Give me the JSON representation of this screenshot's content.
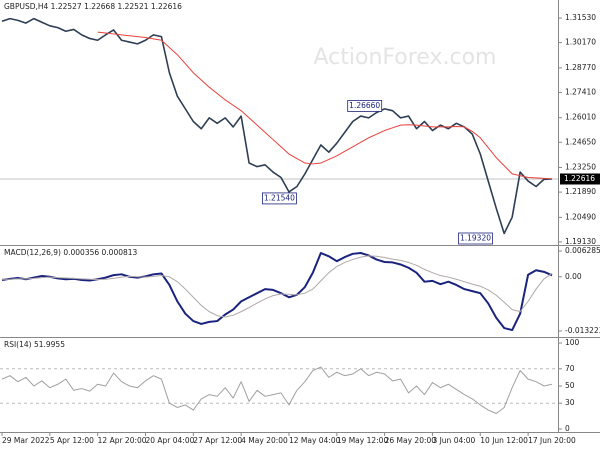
{
  "watermark": "ActionForex.com",
  "chart_data": [
    {
      "type": "line",
      "title": "GBPUSD,H4  1.22527 1.22668 1.22521 1.22616",
      "xlim": [
        -0.25,
        69.75
      ],
      "ylim": [
        1.1896,
        1.3253
      ],
      "yticks": [
        {
          "value": 1.3153,
          "label": "1.31530"
        },
        {
          "value": 1.3017,
          "label": "1.30170"
        },
        {
          "value": 1.2877,
          "label": "1.28770"
        },
        {
          "value": 1.2741,
          "label": "1.27410"
        },
        {
          "value": 1.2601,
          "label": "1.26010"
        },
        {
          "value": 1.2465,
          "label": "1.24650"
        },
        {
          "value": 1.2325,
          "label": "1.23250"
        },
        {
          "value": 1.2189,
          "label": "1.21890"
        },
        {
          "value": 1.2049,
          "label": "1.20490"
        },
        {
          "value": 1.1913,
          "label": "1.19130"
        }
      ],
      "current": 1.22616,
      "series": [
        {
          "color": "#2e3f55",
          "values": [
            1.3135,
            1.315,
            1.314,
            1.3125,
            1.315,
            1.313,
            1.311,
            1.31,
            1.308,
            1.309,
            1.306,
            1.304,
            1.303,
            1.306,
            1.3087,
            1.303,
            1.302,
            1.301,
            1.303,
            1.306,
            1.305,
            1.285,
            1.272,
            1.265,
            1.258,
            1.254,
            1.26,
            1.257,
            1.26,
            1.255,
            1.261,
            1.235,
            1.233,
            1.234,
            1.23,
            1.227,
            1.219,
            1.222,
            1.229,
            1.237,
            1.245,
            1.241,
            1.246,
            1.252,
            1.258,
            1.261,
            1.26,
            1.263,
            1.265,
            1.264,
            1.26,
            1.261,
            1.254,
            1.258,
            1.253,
            1.256,
            1.254,
            1.257,
            1.255,
            1.251,
            1.24,
            1.225,
            1.21,
            1.196,
            1.205,
            1.23,
            1.225,
            1.222,
            1.226,
            1.22616
          ]
        },
        {
          "color": "#e8413c",
          "values": [
            null,
            null,
            null,
            null,
            null,
            null,
            null,
            null,
            null,
            null,
            null,
            null,
            1.3075,
            1.307,
            1.3065,
            1.306,
            1.3055,
            1.305,
            1.3045,
            1.3038,
            1.303,
            1.299,
            1.295,
            1.29,
            1.285,
            1.281,
            1.277,
            1.2735,
            1.27,
            1.267,
            1.264,
            1.26,
            1.256,
            1.252,
            1.248,
            1.244,
            1.24,
            1.2375,
            1.235,
            1.2345,
            1.235,
            1.237,
            1.239,
            1.2415,
            1.244,
            1.2465,
            1.249,
            1.251,
            1.253,
            1.2545,
            1.256,
            1.2562,
            1.256,
            1.2555,
            1.255,
            1.255,
            1.255,
            1.2552,
            1.255,
            1.2525,
            1.249,
            1.2435,
            1.238,
            1.2335,
            1.229,
            1.228,
            1.227,
            1.2268,
            1.2265,
            1.2262
          ]
        }
      ],
      "annotations": [
        {
          "label": "1.26660",
          "x": 45.5,
          "y": 1.2666
        },
        {
          "label": "1.21540",
          "x": 34.8,
          "y": 1.2154
        },
        {
          "label": "1.19320",
          "x": 59.4,
          "y": 1.1932
        }
      ]
    },
    {
      "type": "line",
      "title": "MACD(12,26,9) 0.000356 0.000813",
      "xlim": [
        -0.25,
        69.75
      ],
      "ylim": [
        -0.014686,
        0.007504
      ],
      "yticks": [
        0.006285,
        {
          "value": 0,
          "label": "0.00"
        },
        -0.013223
      ],
      "series": [
        {
          "color": "#1a237e",
          "values": [
            -0.0008,
            -0.0005,
            -0.0003,
            -0.0006,
            -0.0002,
            0.0002,
            0.0,
            -0.0004,
            -0.0006,
            -0.0005,
            -0.0008,
            -0.0009,
            -0.0006,
            -0.0002,
            0.0004,
            0.0006,
            0.0,
            -0.0002,
            0.0001,
            0.0006,
            0.0008,
            -0.002,
            -0.006,
            -0.009,
            -0.0108,
            -0.0115,
            -0.011,
            -0.0108,
            -0.0092,
            -0.008,
            -0.006,
            -0.005,
            -0.004,
            -0.003,
            -0.0032,
            -0.004,
            -0.005,
            -0.0044,
            -0.0025,
            0.001,
            0.0058,
            0.005,
            0.0038,
            0.0048,
            0.0056,
            0.0058,
            0.0052,
            0.0042,
            0.0036,
            0.0035,
            0.003,
            0.0022,
            0.001,
            -0.0012,
            -0.001,
            -0.0018,
            -0.0012,
            -0.002,
            -0.003,
            -0.0035,
            -0.004,
            -0.0065,
            -0.01,
            -0.0125,
            -0.013,
            -0.009,
            0.0005,
            0.0016,
            0.0012,
            0.000356
          ]
        },
        {
          "color": "#b0a8a8",
          "values": [
            -0.0006,
            -0.0006,
            -0.0005,
            -0.0005,
            -0.0004,
            -0.0002,
            -0.0001,
            -0.0002,
            -0.0003,
            -0.0004,
            -0.0005,
            -0.0006,
            -0.0007,
            -0.0006,
            -0.0004,
            -0.0001,
            0.0001,
            0.0,
            -0.0001,
            0.0001,
            0.0003,
            0.0,
            -0.0012,
            -0.003,
            -0.005,
            -0.007,
            -0.0085,
            -0.0095,
            -0.0098,
            -0.0094,
            -0.0085,
            -0.0075,
            -0.0064,
            -0.0054,
            -0.0046,
            -0.0042,
            -0.0043,
            -0.0044,
            -0.004,
            -0.003,
            -0.001,
            0.001,
            0.0025,
            0.0035,
            0.0042,
            0.0048,
            0.0051,
            0.005,
            0.0047,
            0.0043,
            0.004,
            0.0035,
            0.0028,
            0.0018,
            0.001,
            0.0003,
            -0.0001,
            -0.0006,
            -0.0012,
            -0.0018,
            -0.0023,
            -0.0032,
            -0.0045,
            -0.0062,
            -0.008,
            -0.0085,
            -0.006,
            -0.003,
            -0.0005,
            0.000813
          ]
        }
      ]
    },
    {
      "type": "line",
      "title": "RSI(14) 51.9955",
      "xlim": [
        -0.25,
        69.75
      ],
      "ylim": [
        -3.5,
        105.8
      ],
      "yticks": [
        100,
        70,
        50,
        30,
        0
      ],
      "levels": [
        70,
        30
      ],
      "series": [
        {
          "color": "#a0a0a0",
          "values": [
            58,
            62,
            55,
            60,
            50,
            56,
            48,
            52,
            58,
            45,
            47,
            44,
            52,
            50,
            65,
            55,
            50,
            48,
            56,
            62,
            58,
            30,
            25,
            28,
            22,
            35,
            40,
            38,
            48,
            36,
            55,
            32,
            45,
            38,
            40,
            42,
            28,
            45,
            55,
            68,
            72,
            60,
            66,
            62,
            64,
            70,
            62,
            66,
            64,
            56,
            58,
            42,
            50,
            40,
            54,
            48,
            52,
            46,
            40,
            35,
            28,
            22,
            18,
            25,
            48,
            68,
            58,
            55,
            50,
            51.9955
          ]
        }
      ],
      "xticks": [
        {
          "value": 0,
          "label": "29 Mar 2022"
        },
        {
          "value": 6,
          "label": "5 Apr 12:00"
        },
        {
          "value": 12,
          "label": "12 Apr 20:00"
        },
        {
          "value": 18,
          "label": "20 Apr 04:00"
        },
        {
          "value": 24,
          "label": "27 Apr 12:00"
        },
        {
          "value": 30,
          "label": "4 May 20:00"
        },
        {
          "value": 36,
          "label": "12 May 04:00"
        },
        {
          "value": 42,
          "label": "19 May 12:00"
        },
        {
          "value": 48,
          "label": "26 May 20:00"
        },
        {
          "value": 54,
          "label": "3 Jun 04:00"
        },
        {
          "value": 60,
          "label": "10 Jun 12:00"
        },
        {
          "value": 66,
          "label": "17 Jun 20:00"
        }
      ]
    }
  ]
}
